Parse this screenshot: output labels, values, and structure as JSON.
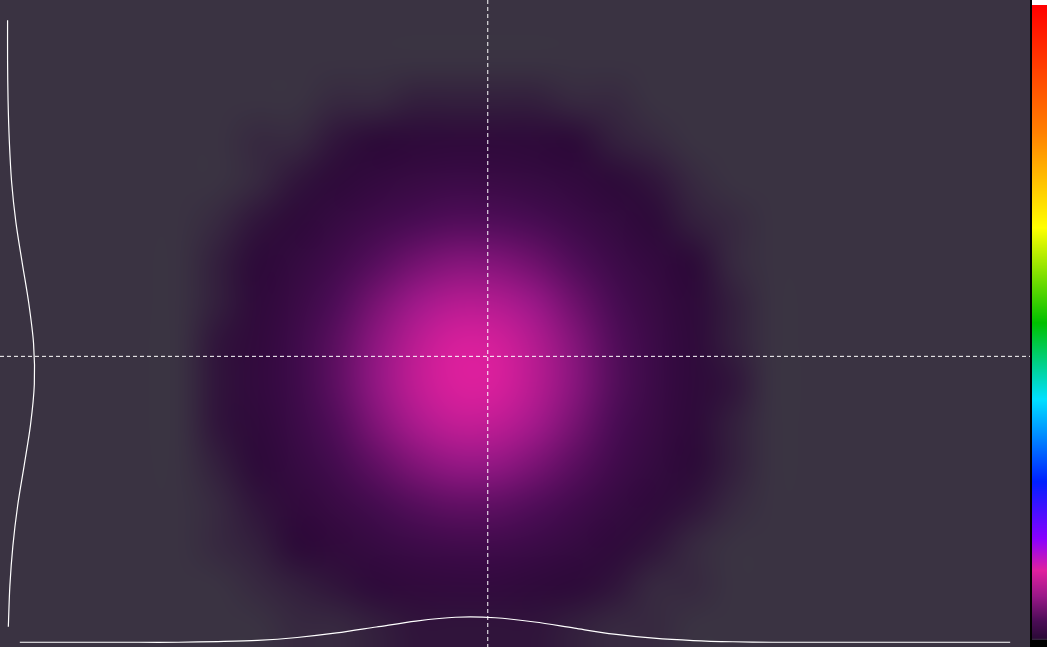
{
  "chart_data": {
    "type": "heatmap",
    "tick_labels": false,
    "grid": false,
    "xlim": [
      0,
      26
    ],
    "ylim": [
      0,
      16
    ],
    "cells": [
      [
        0,
        0,
        0,
        0,
        0,
        0,
        0,
        0,
        0,
        0,
        0,
        0,
        0,
        0,
        0,
        0,
        0,
        0,
        0,
        0,
        0,
        0,
        0,
        0,
        0,
        0
      ],
      [
        0,
        0,
        0,
        0,
        0,
        0,
        0,
        0,
        0,
        0,
        0,
        0,
        0,
        0,
        0,
        0,
        0,
        0,
        0,
        0,
        0,
        0,
        0,
        0,
        0,
        0
      ],
      [
        0,
        0,
        0,
        0,
        0,
        0,
        0,
        0,
        1,
        1,
        2,
        2,
        2,
        2,
        1,
        1,
        0,
        0,
        0,
        0,
        0,
        0,
        0,
        0,
        0,
        0
      ],
      [
        0,
        0,
        0,
        0,
        0,
        0,
        1,
        1,
        3,
        4,
        6,
        7,
        7,
        6,
        4,
        2,
        1,
        0,
        0,
        0,
        0,
        0,
        0,
        0,
        0,
        0
      ],
      [
        0,
        0,
        0,
        0,
        0,
        0,
        1,
        3,
        6,
        10,
        14,
        17,
        16,
        13,
        9,
        5,
        3,
        1,
        0,
        0,
        0,
        0,
        0,
        0,
        0,
        0
      ],
      [
        0,
        0,
        0,
        0,
        0,
        1,
        3,
        6,
        13,
        21,
        29,
        34,
        33,
        28,
        19,
        11,
        5,
        2,
        1,
        0,
        0,
        0,
        0,
        0,
        0,
        0
      ],
      [
        0,
        0,
        0,
        0,
        0,
        2,
        5,
        11,
        22,
        36,
        50,
        59,
        58,
        48,
        33,
        19,
        10,
        4,
        1,
        0,
        0,
        0,
        0,
        0,
        0,
        0
      ],
      [
        0,
        0,
        0,
        0,
        0,
        2,
        7,
        16,
        32,
        53,
        73,
        86,
        84,
        70,
        48,
        28,
        14,
        6,
        2,
        0,
        0,
        0,
        0,
        0,
        0,
        0
      ],
      [
        0,
        0,
        0,
        0,
        0,
        3,
        8,
        20,
        39,
        64,
        89,
        105,
        103,
        85,
        59,
        34,
        17,
        7,
        2,
        0,
        0,
        0,
        0,
        0,
        0,
        0
      ],
      [
        0,
        0,
        0,
        0,
        0,
        3,
        9,
        20,
        40,
        66,
        92,
        107,
        106,
        87,
        61,
        35,
        17,
        7,
        3,
        0,
        0,
        0,
        0,
        0,
        0,
        0
      ],
      [
        0,
        0,
        0,
        0,
        0,
        3,
        7,
        17,
        34,
        57,
        79,
        93,
        91,
        75,
        52,
        30,
        15,
        6,
        2,
        0,
        0,
        0,
        0,
        0,
        0,
        0
      ],
      [
        0,
        0,
        0,
        0,
        0,
        2,
        5,
        13,
        25,
        41,
        57,
        67,
        66,
        54,
        38,
        22,
        11,
        4,
        2,
        0,
        0,
        0,
        0,
        0,
        0,
        0
      ],
      [
        0,
        0,
        0,
        0,
        0,
        1,
        3,
        8,
        15,
        25,
        35,
        41,
        40,
        33,
        23,
        13,
        7,
        3,
        1,
        0,
        0,
        0,
        0,
        0,
        0,
        0
      ],
      [
        0,
        0,
        0,
        0,
        0,
        1,
        2,
        4,
        8,
        13,
        18,
        21,
        21,
        17,
        12,
        7,
        3,
        1,
        0,
        0,
        0,
        0,
        0,
        0,
        0,
        0
      ],
      [
        0,
        0,
        0,
        0,
        0,
        0,
        1,
        2,
        3,
        6,
        8,
        9,
        9,
        7,
        5,
        3,
        1,
        1,
        0,
        0,
        0,
        0,
        0,
        0,
        0,
        0
      ],
      [
        0,
        0,
        0,
        0,
        0,
        0,
        0,
        1,
        1,
        2,
        3,
        3,
        3,
        3,
        2,
        1,
        1,
        0,
        0,
        0,
        0,
        0,
        0,
        0,
        0,
        0
      ]
    ],
    "colorbar": {
      "range": [
        0,
        1000
      ]
    },
    "crosshair": {
      "x": 12.3,
      "y": 8.8
    },
    "profiles": {
      "horizontal": [
        0,
        0,
        0,
        0,
        0,
        3,
        8,
        20,
        39,
        64,
        89,
        105,
        103,
        85,
        59,
        34,
        17,
        7,
        2,
        0,
        0,
        0,
        0,
        0,
        0,
        0
      ],
      "horizontal_range": [
        -20,
        2700
      ],
      "vertical": [
        0,
        0,
        2,
        7,
        16,
        33,
        58,
        84,
        103,
        106,
        91,
        66,
        40,
        21,
        9,
        3
      ],
      "vertical_range": [
        -30,
        4050
      ]
    }
  }
}
